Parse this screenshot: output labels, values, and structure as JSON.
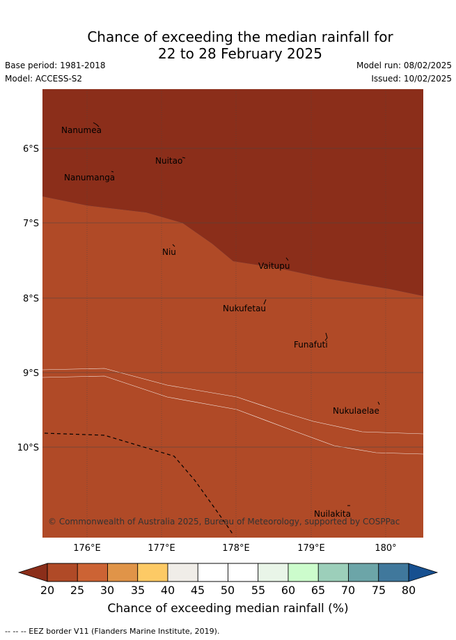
{
  "title_line1": "Chance of exceeding the median rainfall for",
  "title_line2": "22 to 28 February 2025",
  "base_period": "Base period: 1981-2018",
  "model": "Model: ACCESS-S2",
  "model_run": "Model run: 08/02/2025",
  "issued": "Issued: 10/02/2025",
  "map": {
    "lat_labels": [
      "6°S",
      "7°S",
      "8°S",
      "9°S",
      "10°S"
    ],
    "lon_labels": [
      "176°E",
      "177°E",
      "178°E",
      "179°E",
      "180°"
    ],
    "islands": [
      "Nanumea",
      "Nuitao",
      "Nanumanga",
      "Niu",
      "Vaitupu",
      "Nukufetau",
      "Funafuti",
      "Nukulaelae",
      "Nuilakita"
    ],
    "copyright": "© Commonwealth of Australia 2025, Bureau of Meteorology, supported by COSPPac"
  },
  "colorbar": {
    "ticks": [
      "20",
      "25",
      "30",
      "35",
      "40",
      "45",
      "50",
      "55",
      "60",
      "65",
      "70",
      "75",
      "80"
    ],
    "colors": [
      "#8b2e1a",
      "#b04a27",
      "#cc6334",
      "#e09448",
      "#fdca65",
      "#f0ede8",
      "#ffffff",
      "#ffffff",
      "#e9f5e8",
      "#ccfccc",
      "#9ccfba",
      "#6ca5a8",
      "#40789c",
      "#175090"
    ],
    "label": "Chance of exceeding median rainfall (%)"
  },
  "footnote": "-- -- -- EEZ border V11 (Flanders Marine Institute, 2019)."
}
